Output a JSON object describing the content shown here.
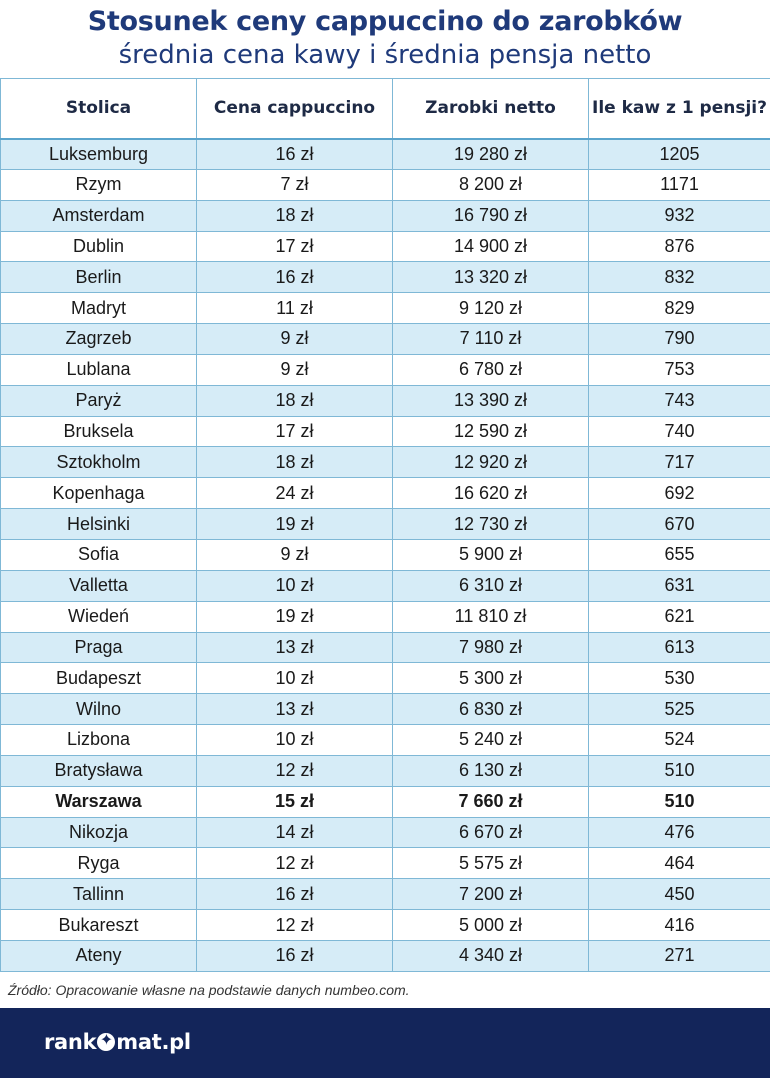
{
  "title": "Stosunek ceny cappuccino do zarobków",
  "subtitle": "średnia cena kawy i średnia pensja netto",
  "table": {
    "headers": [
      "Stolica",
      "Cena cappuccino",
      "Zarobki netto",
      "Ile kaw z 1 pensji?"
    ],
    "rows": [
      {
        "city": "Luksemburg",
        "price": "16 zł",
        "salary": "19 280 zł",
        "coffees": "1205"
      },
      {
        "city": "Rzym",
        "price": "7 zł",
        "salary": "8 200 zł",
        "coffees": "1171"
      },
      {
        "city": "Amsterdam",
        "price": "18 zł",
        "salary": "16 790 zł",
        "coffees": "932"
      },
      {
        "city": "Dublin",
        "price": "17 zł",
        "salary": "14 900 zł",
        "coffees": "876"
      },
      {
        "city": "Berlin",
        "price": "16 zł",
        "salary": "13 320 zł",
        "coffees": "832"
      },
      {
        "city": "Madryt",
        "price": "11 zł",
        "salary": "9 120 zł",
        "coffees": "829"
      },
      {
        "city": "Zagrzeb",
        "price": "9 zł",
        "salary": "7 110 zł",
        "coffees": "790"
      },
      {
        "city": "Lublana",
        "price": "9 zł",
        "salary": "6 780 zł",
        "coffees": "753"
      },
      {
        "city": "Paryż",
        "price": "18 zł",
        "salary": "13 390 zł",
        "coffees": "743"
      },
      {
        "city": "Bruksela",
        "price": "17 zł",
        "salary": "12 590 zł",
        "coffees": "740"
      },
      {
        "city": "Sztokholm",
        "price": "18 zł",
        "salary": "12 920 zł",
        "coffees": "717"
      },
      {
        "city": "Kopenhaga",
        "price": "24 zł",
        "salary": "16 620 zł",
        "coffees": "692"
      },
      {
        "city": "Helsinki",
        "price": "19 zł",
        "salary": "12 730 zł",
        "coffees": "670"
      },
      {
        "city": "Sofia",
        "price": "9 zł",
        "salary": "5 900 zł",
        "coffees": "655"
      },
      {
        "city": "Valletta",
        "price": "10 zł",
        "salary": "6 310 zł",
        "coffees": "631"
      },
      {
        "city": "Wiedeń",
        "price": "19 zł",
        "salary": "11 810 zł",
        "coffees": "621"
      },
      {
        "city": "Praga",
        "price": "13 zł",
        "salary": "7 980 zł",
        "coffees": "613"
      },
      {
        "city": "Budapeszt",
        "price": "10 zł",
        "salary": "5 300 zł",
        "coffees": "530"
      },
      {
        "city": "Wilno",
        "price": "13 zł",
        "salary": "6 830 zł",
        "coffees": "525"
      },
      {
        "city": "Lizbona",
        "price": "10 zł",
        "salary": "5 240 zł",
        "coffees": "524"
      },
      {
        "city": "Bratysława",
        "price": "12 zł",
        "salary": "6 130 zł",
        "coffees": "510"
      },
      {
        "city": "Warszawa",
        "price": "15 zł",
        "salary": "7 660 zł",
        "coffees": "510",
        "highlight": true
      },
      {
        "city": "Nikozja",
        "price": "14 zł",
        "salary": "6 670 zł",
        "coffees": "476"
      },
      {
        "city": "Ryga",
        "price": "12 zł",
        "salary": "5 575 zł",
        "coffees": "464"
      },
      {
        "city": "Tallinn",
        "price": "16 zł",
        "salary": "7 200 zł",
        "coffees": "450"
      },
      {
        "city": "Bukareszt",
        "price": "12 zł",
        "salary": "5 000 zł",
        "coffees": "416"
      },
      {
        "city": "Ateny",
        "price": "16 zł",
        "salary": "4 340 zł",
        "coffees": "271"
      }
    ]
  },
  "source": "Źródło: Opracowanie własne na podstawie danych numbeo.com.",
  "footer": {
    "logo_left": "rank",
    "logo_right": "mat.pl",
    "logo_icon": "star-icon",
    "bg_color": "#13255a"
  },
  "colors": {
    "title": "#1f3a7a",
    "row_stripe": "#d6ecf7",
    "border": "#7fb8d6"
  }
}
